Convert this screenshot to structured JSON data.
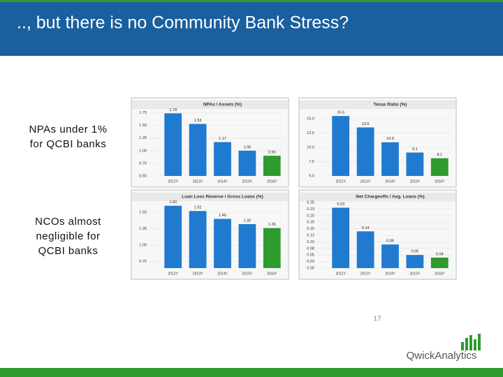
{
  "title": ".., but there is no Community Bank Stress?",
  "notes": [
    "NPAs under 1% for QCBI banks",
    "NCOs almost negligible for QCBI banks"
  ],
  "page_number": "17",
  "logo": "QwickAnalytics",
  "chart_data": [
    {
      "type": "bar",
      "title": "NPAs / Assets (%)",
      "categories": [
        "2012Y",
        "2013Y",
        "2014Y",
        "2015Y",
        "2016Y"
      ],
      "values": [
        1.74,
        1.53,
        1.17,
        1.0,
        0.9
      ],
      "value_labels": [
        "1.74",
        "1.53",
        "1.17",
        "1.00",
        "0.90"
      ],
      "colors": [
        "#1f7ad0",
        "#1f7ad0",
        "#1f7ad0",
        "#1f7ad0",
        "#2e9b2e"
      ],
      "ylim": [
        0.5,
        1.8
      ],
      "yticks": [
        {
          "value": 0.5,
          "label": "0.50"
        },
        0.75,
        {
          "value": 1.0,
          "label": "1.00"
        },
        1.25,
        {
          "value": 1.5,
          "label": "1.50"
        },
        1.75
      ],
      "grid": true
    },
    {
      "type": "bar",
      "title": "Texas Ratio (%)",
      "categories": [
        "2012Y",
        "2013Y",
        "2014Y",
        "2015Y",
        "2016Y"
      ],
      "values": [
        15.5,
        13.5,
        10.9,
        9.1,
        8.1
      ],
      "colors": [
        "#1f7ad0",
        "#1f7ad0",
        "#1f7ad0",
        "#1f7ad0",
        "#2e9b2e"
      ],
      "ylim": [
        5,
        16.5
      ],
      "yticks": [
        {
          "value": 5,
          "label": "5.0"
        },
        7.5,
        {
          "value": 10,
          "label": "10.0"
        },
        12.5,
        {
          "value": 15,
          "label": "15.0"
        }
      ],
      "grid": true
    },
    {
      "type": "bar",
      "title": "Loan Loss Reserve / Gross Loans (%)",
      "categories": [
        "2012Y",
        "2013Y",
        "2014Y",
        "2015Y",
        "2016Y"
      ],
      "values": [
        1.6,
        1.52,
        1.4,
        1.32,
        1.26
      ],
      "value_labels": [
        "1.60",
        "1.52",
        "1.40",
        "1.32",
        "1.26"
      ],
      "colors": [
        "#1f7ad0",
        "#1f7ad0",
        "#1f7ad0",
        "#1f7ad0",
        "#2e9b2e"
      ],
      "ylim": [
        0.65,
        1.65
      ],
      "yticks": [
        0.75,
        {
          "value": 1.0,
          "label": "1.00"
        },
        1.25,
        {
          "value": 1.5,
          "label": "1.50"
        }
      ],
      "grid": true
    },
    {
      "type": "bar",
      "title": "Net Chargeoffs / Avg. Loans (%)",
      "categories": [
        "2012Y",
        "2013Y",
        "2014Y",
        "2015Y",
        "2016Y"
      ],
      "values": [
        0.23,
        0.14,
        0.09,
        0.05,
        0.04
      ],
      "colors": [
        "#1f7ad0",
        "#1f7ad0",
        "#1f7ad0",
        "#1f7ad0",
        "#2e9b2e"
      ],
      "ylim": [
        0,
        0.25
      ],
      "yticks": [
        {
          "value": 0,
          "label": "0.00"
        },
        {
          "value": 0.025,
          "label": "0.03"
        },
        0.05,
        {
          "value": 0.075,
          "label": "0.08"
        },
        {
          "value": 0.1,
          "label": "0.10"
        },
        {
          "value": 0.125,
          "label": "0.13"
        },
        0.15,
        {
          "value": 0.175,
          "label": "0.18"
        },
        {
          "value": 0.2,
          "label": "0.20"
        },
        {
          "value": 0.225,
          "label": "0.23"
        },
        0.25
      ],
      "grid": true
    }
  ]
}
